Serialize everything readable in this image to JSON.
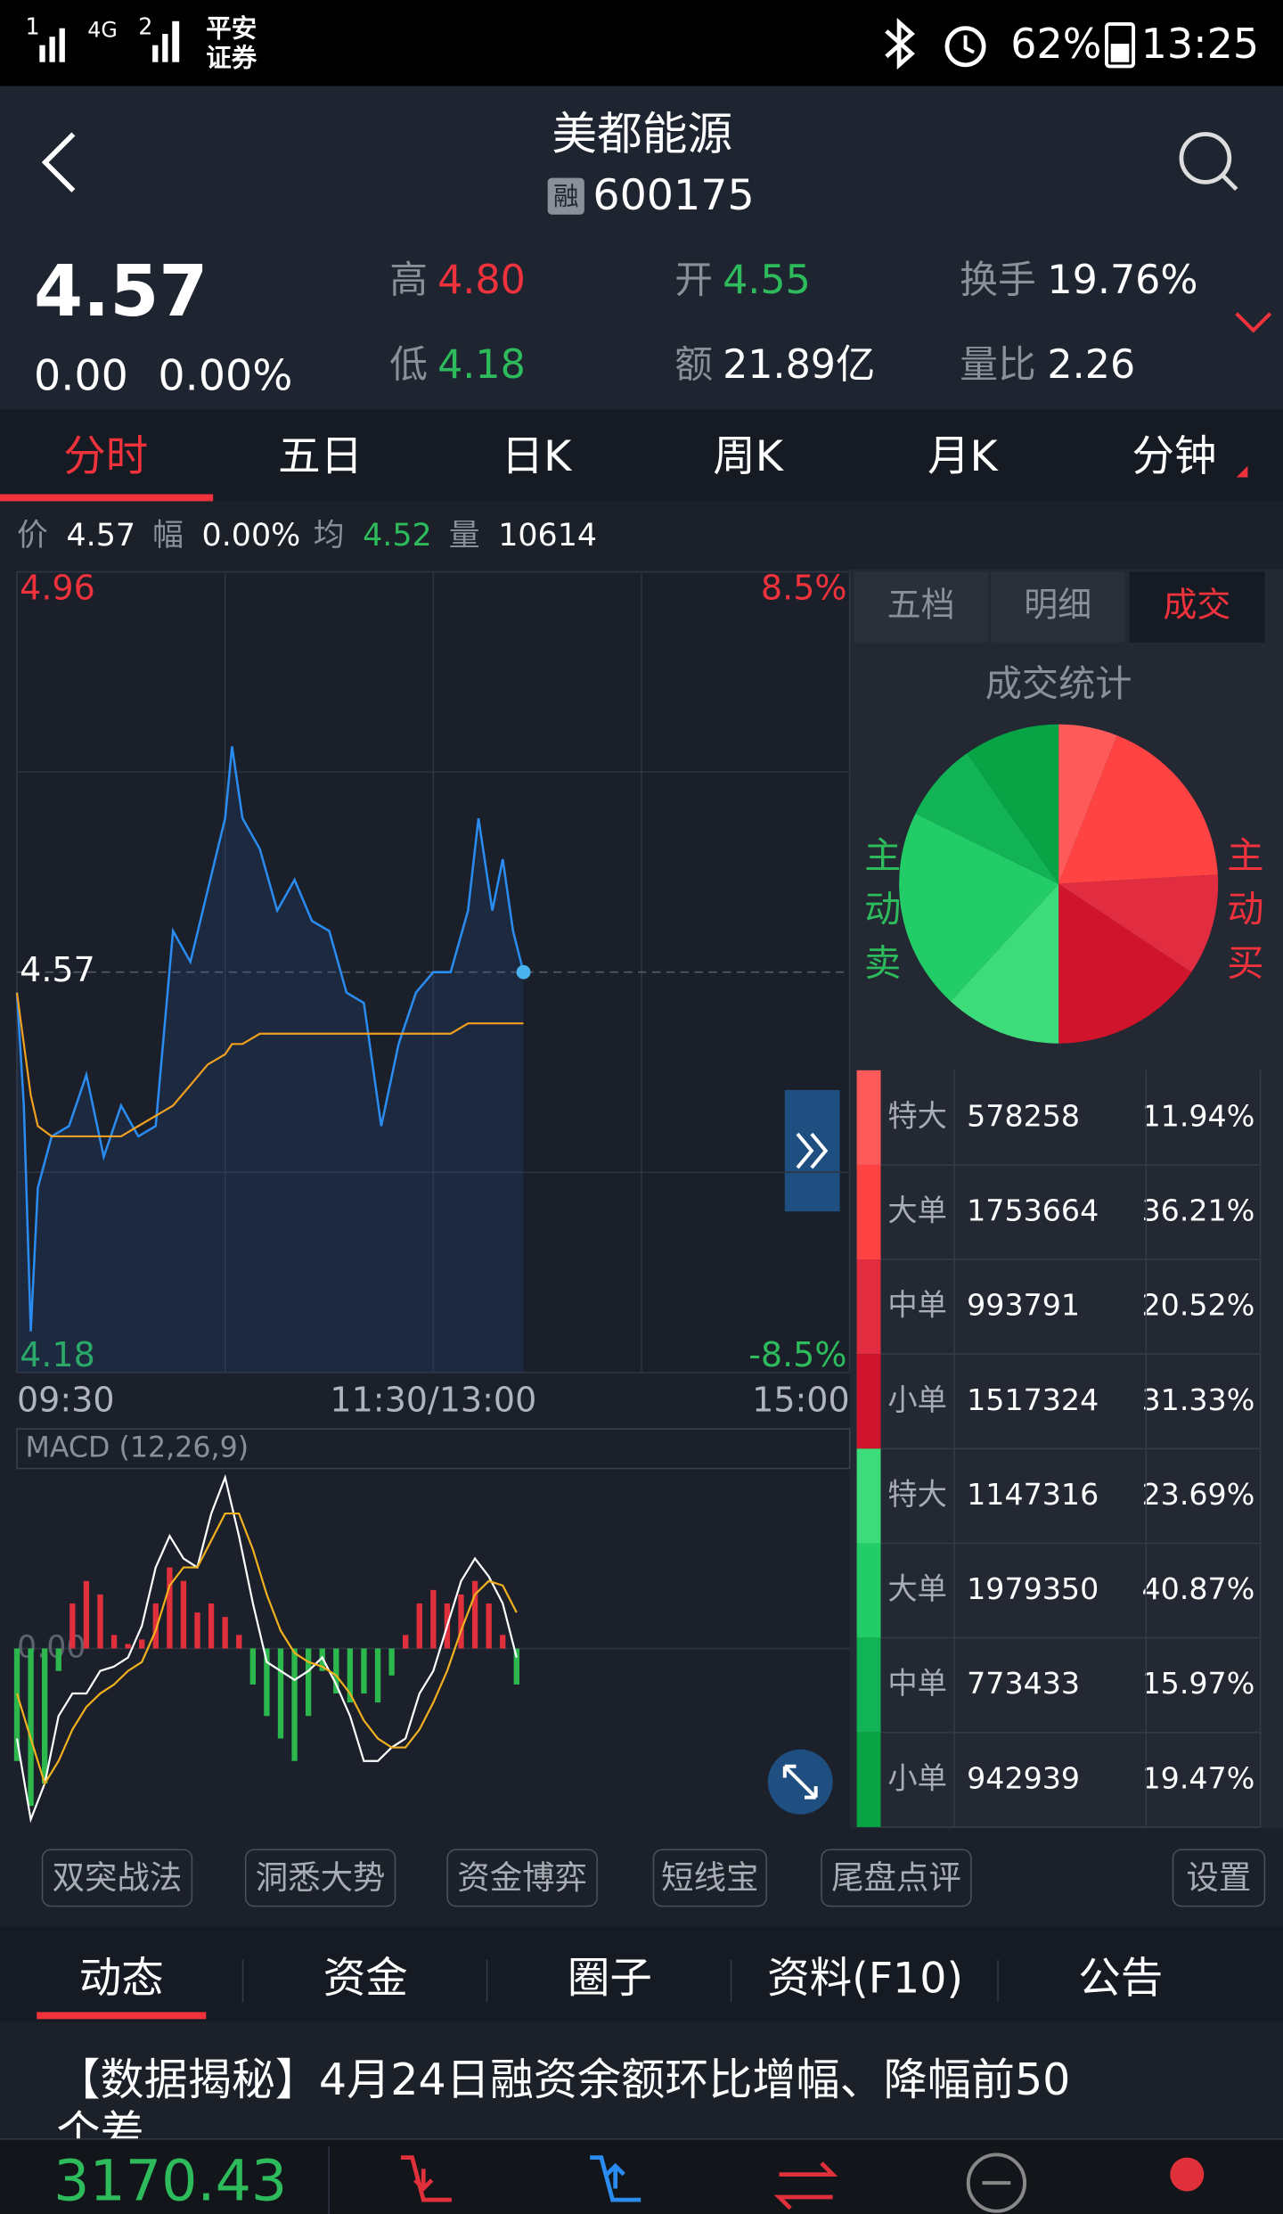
{
  "status_bar": {
    "signal1": "1",
    "network": "4G",
    "signal2": "2",
    "carrier": [
      "平安",
      "证券"
    ],
    "battery": "62%",
    "time": "13:25"
  },
  "header": {
    "title": "美都能源",
    "badge": "融",
    "code": "600175"
  },
  "quote": {
    "price": "4.57",
    "change": "0.00",
    "change_pct": "0.00%",
    "fields": [
      {
        "label": "高",
        "value": "4.80",
        "color": "#f0323c"
      },
      {
        "label": "开",
        "value": "4.55",
        "color": "#2dbb5c"
      },
      {
        "label": "换手",
        "value": "19.76%",
        "color": "#ffffff"
      },
      {
        "label": "低",
        "value": "4.18",
        "color": "#2dbb5c"
      },
      {
        "label": "额",
        "value": "21.89亿",
        "color": "#ffffff"
      },
      {
        "label": "量比",
        "value": "2.26",
        "color": "#ffffff"
      }
    ]
  },
  "period_tabs": [
    "分时",
    "五日",
    "日K",
    "周K",
    "月K",
    "分钟"
  ],
  "info_row": [
    {
      "label": "价",
      "value": "4.57",
      "color": "#ffffff"
    },
    {
      "label": "幅",
      "value": "0.00%",
      "color": "#ffffff"
    },
    {
      "label": "均",
      "value": "4.52",
      "color": "#2dbb5c"
    },
    {
      "label": "量",
      "value": "10614",
      "color": "#ffffff"
    }
  ],
  "side_tabs": [
    "五档",
    "明细",
    "成交"
  ],
  "chart_data": [
    {
      "type": "line",
      "x": [
        0,
        2,
        4,
        6,
        10,
        15,
        20,
        25,
        30,
        35,
        40,
        45,
        50,
        55,
        60,
        62,
        65,
        70,
        75,
        80,
        85,
        90,
        95,
        100,
        105,
        110,
        115,
        120,
        125,
        130,
        133,
        137,
        140,
        143,
        146
      ],
      "xlim": [
        0,
        240
      ],
      "xticks": [
        {
          "value": 0,
          "label": "09:30"
        },
        {
          "value": 60,
          "label": null
        },
        {
          "value": 120,
          "label": "11:30/13:00"
        },
        {
          "value": 180,
          "label": null
        },
        {
          "value": 240,
          "label": "15:00"
        }
      ],
      "ylim": [
        4.18,
        4.96
      ],
      "yticks": [
        4.18,
        {
          "value": 4.375,
          "label": null
        },
        4.57,
        {
          "value": 4.765,
          "label": null
        },
        4.96
      ],
      "y2lim": [
        -8.5,
        8.5
      ],
      "y2ticks": [
        {
          "value": 8.5,
          "label": "8.5%"
        },
        {
          "value": -8.5,
          "label": "-8.5%"
        }
      ],
      "series": [
        {
          "color": "#2a8cf0",
          "values": [
            4.55,
            4.44,
            4.22,
            4.36,
            4.41,
            4.42,
            4.47,
            4.39,
            4.44,
            4.41,
            4.42,
            4.61,
            4.58,
            4.65,
            4.72,
            4.79,
            4.72,
            4.69,
            4.63,
            4.66,
            4.62,
            4.61,
            4.55,
            4.54,
            4.42,
            4.5,
            4.55,
            4.57,
            4.57,
            4.63,
            4.72,
            4.63,
            4.68,
            4.61,
            4.57
          ]
        },
        {
          "color": "#f0a020",
          "values": [
            4.55,
            4.5,
            4.45,
            4.42,
            4.41,
            4.41,
            4.41,
            4.41,
            4.41,
            4.42,
            4.43,
            4.44,
            4.46,
            4.48,
            4.49,
            4.5,
            4.5,
            4.51,
            4.51,
            4.51,
            4.51,
            4.51,
            4.51,
            4.51,
            4.51,
            4.51,
            4.51,
            4.51,
            4.51,
            4.52,
            4.52,
            4.52,
            4.52,
            4.52,
            4.52
          ]
        }
      ]
    },
    {
      "type": "macd",
      "title": "MACD (12,26,9)",
      "x": [
        0,
        4,
        8,
        12,
        16,
        20,
        24,
        28,
        32,
        36,
        40,
        44,
        48,
        52,
        56,
        60,
        64,
        68,
        72,
        76,
        80,
        84,
        88,
        92,
        96,
        100,
        104,
        108,
        112,
        116,
        120,
        124,
        128,
        132,
        136,
        140,
        144
      ],
      "xlim": [
        0,
        240
      ],
      "ylim": [
        -0.04,
        0.04
      ],
      "yticks": [
        {
          "value": 0,
          "label": "0.00"
        }
      ],
      "histogram": {
        "up_color": "#e0303c",
        "down_color": "#2db84d",
        "values": [
          -0.025,
          -0.035,
          -0.03,
          -0.005,
          0.01,
          0.015,
          0.012,
          0.003,
          0.001,
          0.002,
          0.01,
          0.018,
          0.015,
          0.008,
          0.01,
          0.007,
          0.003,
          -0.008,
          -0.015,
          -0.02,
          -0.025,
          -0.015,
          -0.005,
          -0.01,
          -0.012,
          -0.01,
          -0.012,
          -0.006,
          0.003,
          0.01,
          0.013,
          0.01,
          0.012,
          0.015,
          0.01,
          0.003,
          -0.008
        ]
      },
      "series": [
        {
          "color": "#ffffff",
          "values": [
            -0.02,
            -0.038,
            -0.03,
            -0.015,
            -0.01,
            -0.01,
            -0.005,
            -0.004,
            -0.002,
            0.005,
            0.018,
            0.025,
            0.02,
            0.018,
            0.03,
            0.038,
            0.025,
            0.01,
            -0.003,
            -0.005,
            -0.007,
            -0.005,
            -0.002,
            -0.008,
            -0.015,
            -0.025,
            -0.025,
            -0.022,
            -0.02,
            -0.01,
            -0.005,
            0.005,
            0.015,
            0.02,
            0.016,
            0.01,
            -0.002
          ]
        },
        {
          "color": "#f0b020",
          "values": [
            -0.01,
            -0.02,
            -0.03,
            -0.025,
            -0.018,
            -0.013,
            -0.01,
            -0.008,
            -0.005,
            -0.003,
            0.004,
            0.014,
            0.018,
            0.018,
            0.024,
            0.03,
            0.03,
            0.022,
            0.012,
            0.004,
            -0.001,
            -0.003,
            -0.004,
            -0.006,
            -0.01,
            -0.016,
            -0.02,
            -0.022,
            -0.022,
            -0.018,
            -0.012,
            -0.005,
            0.004,
            0.012,
            0.015,
            0.014,
            0.008
          ]
        }
      ]
    },
    {
      "type": "pie",
      "title": "成交统计",
      "buy_label": "主动买",
      "sell_label": "主动卖",
      "categories": [
        "特大",
        "大单",
        "中单",
        "小单",
        "特大",
        "大单",
        "中单",
        "小单"
      ],
      "volumes": [
        578258,
        1753664,
        993791,
        1517324,
        1147316,
        1979350,
        773433,
        942939
      ],
      "values": [
        11.94,
        36.21,
        20.52,
        31.33,
        23.69,
        40.87,
        15.97,
        19.47
      ],
      "value_labels": [
        "11.94%",
        "36.21%",
        "20.52%",
        "31.33%",
        "23.69%",
        "40.87%",
        "15.97%",
        "19.47%"
      ],
      "colors": [
        "#ff5a5a",
        "#ff4242",
        "#e22c40",
        "#d0142c",
        "#3ddc7a",
        "#22cc66",
        "#11b355",
        "#07a344"
      ],
      "buy_color": "#f0323c",
      "sell_color": "#2dbb5c"
    }
  ],
  "tools": [
    "双突战法",
    "洞悉大势",
    "资金博弈",
    "短线宝",
    "尾盘点评",
    "设置"
  ],
  "bottom_tabs": [
    "动态",
    "资金",
    "圈子",
    "资料(F10)",
    "公告"
  ],
  "news": [
    "【数据揭秘】4月24日融资余额环比增幅、降幅前50",
    "个差"
  ],
  "index_value": "3170.43"
}
